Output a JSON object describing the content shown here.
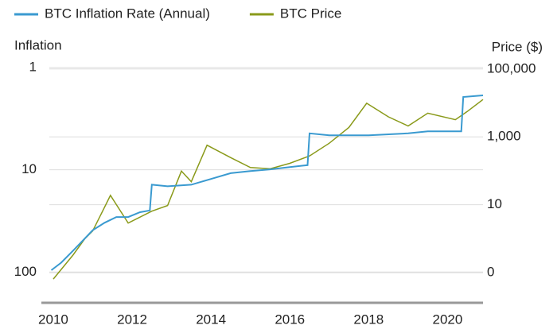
{
  "chart_data": {
    "type": "line",
    "y_label": "Inflation",
    "y2_label": "Price ($)",
    "xlim": [
      2009.9,
      2020.9
    ],
    "xticks": [
      2010,
      2012,
      2014,
      2016,
      2018,
      2020
    ],
    "ylim": [
      1,
      200
    ],
    "yticks": [
      1,
      10,
      100
    ],
    "y_log": true,
    "y_reversed": true,
    "y2lim": [
      0.013,
      110000
    ],
    "y2ticks": [
      {
        "value": 100000,
        "label": "100,000"
      },
      {
        "value": 1000,
        "label": "1,000"
      },
      10,
      {
        "value": 0.1,
        "label": "0"
      }
    ],
    "y2_log": true,
    "grid": true,
    "legend": "top",
    "series": [
      {
        "name": "BTC Inflation Rate (Annual)",
        "color": "#3a9ad0",
        "axis": "y",
        "x": [
          2009.95,
          2010.2,
          2010.5,
          2010.8,
          2011.0,
          2011.3,
          2011.6,
          2011.9,
          2012.2,
          2012.45,
          2012.5,
          2012.9,
          2013.5,
          2014.0,
          2014.5,
          2015.0,
          2015.5,
          2016.0,
          2016.45,
          2016.5,
          2017.0,
          2018.0,
          2019.0,
          2019.5,
          2020.0,
          2020.35,
          2020.4,
          2020.9
        ],
        "values": [
          96,
          81,
          62,
          47,
          39,
          33,
          29,
          29,
          26,
          25,
          14,
          14.5,
          14,
          12.3,
          10.8,
          10.3,
          9.9,
          9.4,
          9.0,
          4.4,
          4.6,
          4.6,
          4.4,
          4.2,
          4.2,
          4.2,
          1.94,
          1.87
        ]
      },
      {
        "name": "BTC Price",
        "color": "#8a9a1a",
        "axis": "y2",
        "x": [
          2010.0,
          2010.5,
          2010.8,
          2011.0,
          2011.45,
          2011.9,
          2012.5,
          2012.9,
          2013.25,
          2013.5,
          2013.9,
          2014.5,
          2015.0,
          2015.5,
          2016.0,
          2016.5,
          2017.0,
          2017.5,
          2017.95,
          2018.5,
          2019.0,
          2019.5,
          2020.2,
          2020.5,
          2020.9
        ],
        "values": [
          0.065,
          0.33,
          1,
          1.7,
          19,
          2.9,
          6.5,
          9.5,
          98,
          48,
          570,
          245,
          125,
          115,
          166,
          275,
          650,
          1900,
          9800,
          3900,
          2100,
          5000,
          3200,
          5600,
          12600
        ]
      }
    ]
  }
}
